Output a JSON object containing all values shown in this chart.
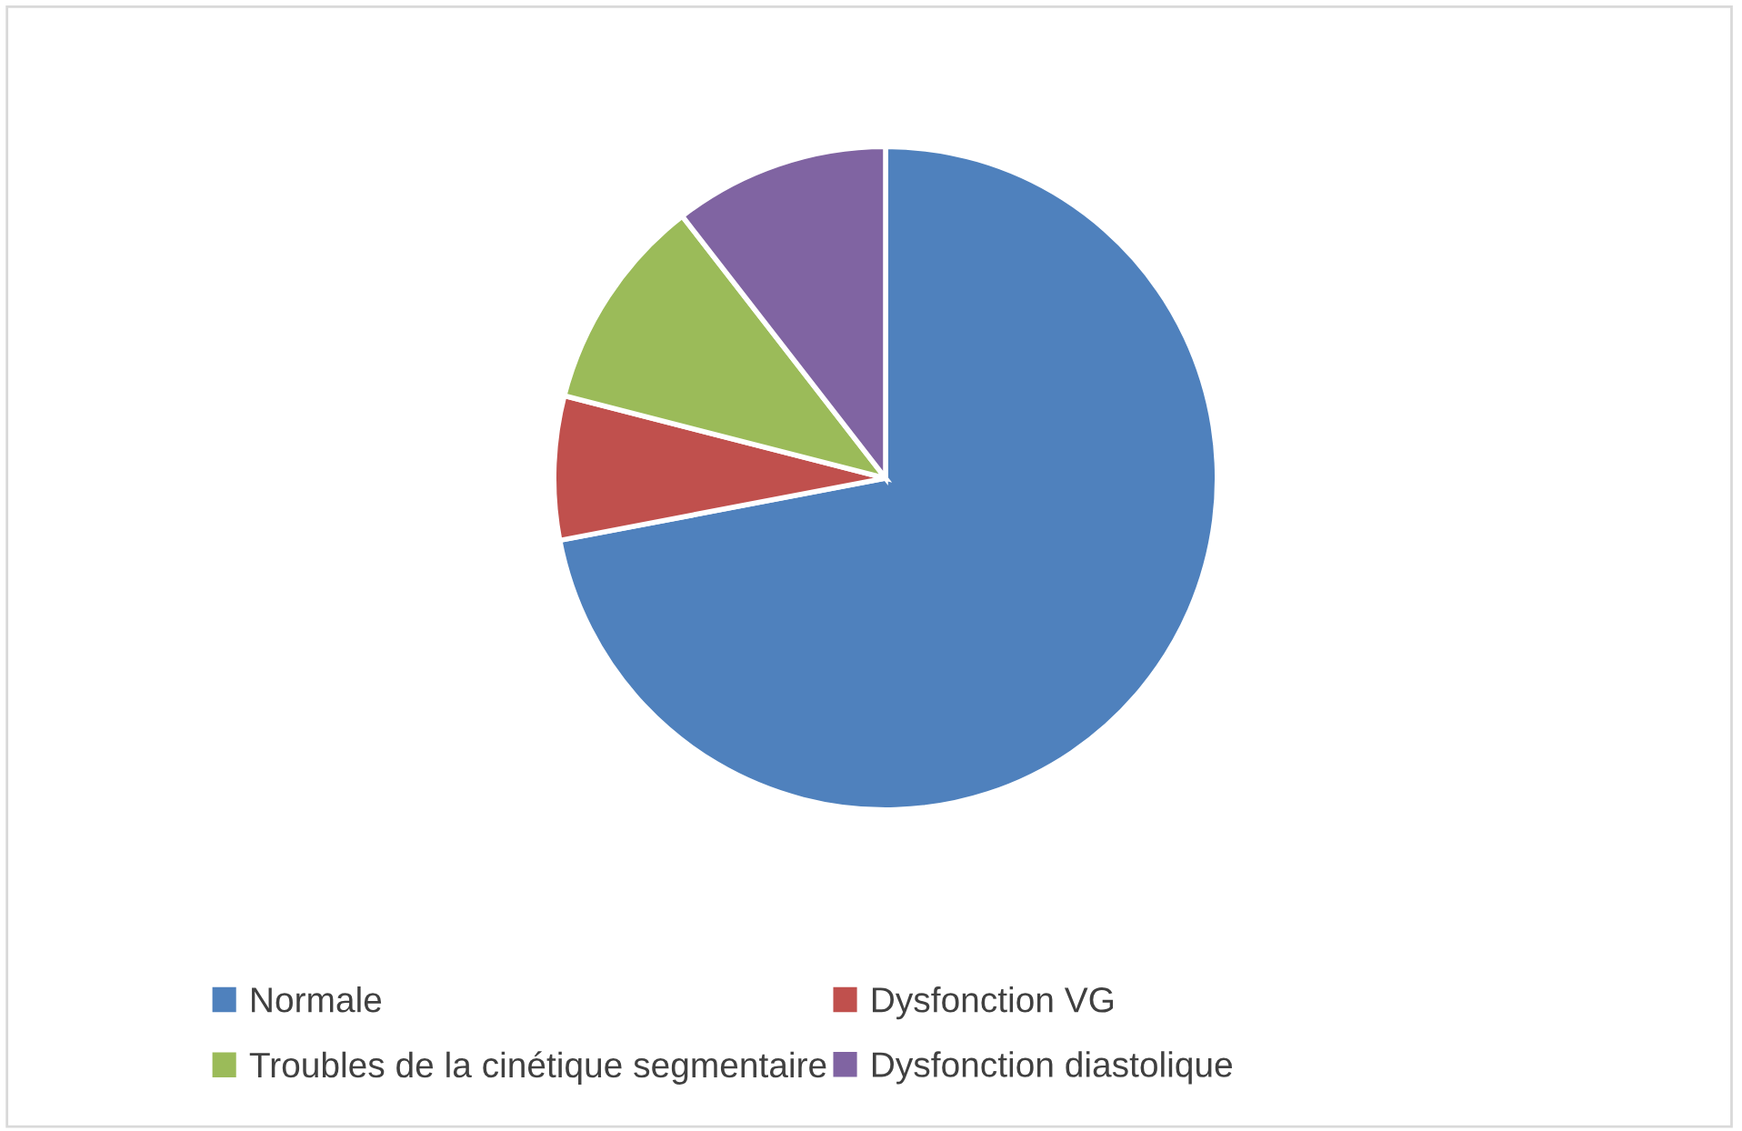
{
  "chart_data": {
    "type": "pie",
    "categories": [
      "Normale",
      "Dysfonction VG",
      "Troubles de la cinétique segmentaire",
      "Dysfonction diastolique"
    ],
    "values": [
      72,
      7,
      10.5,
      10.5
    ],
    "colors": [
      "#4f81bd",
      "#c0504d",
      "#9bbb59",
      "#8064a2"
    ],
    "legend": "bottom"
  }
}
